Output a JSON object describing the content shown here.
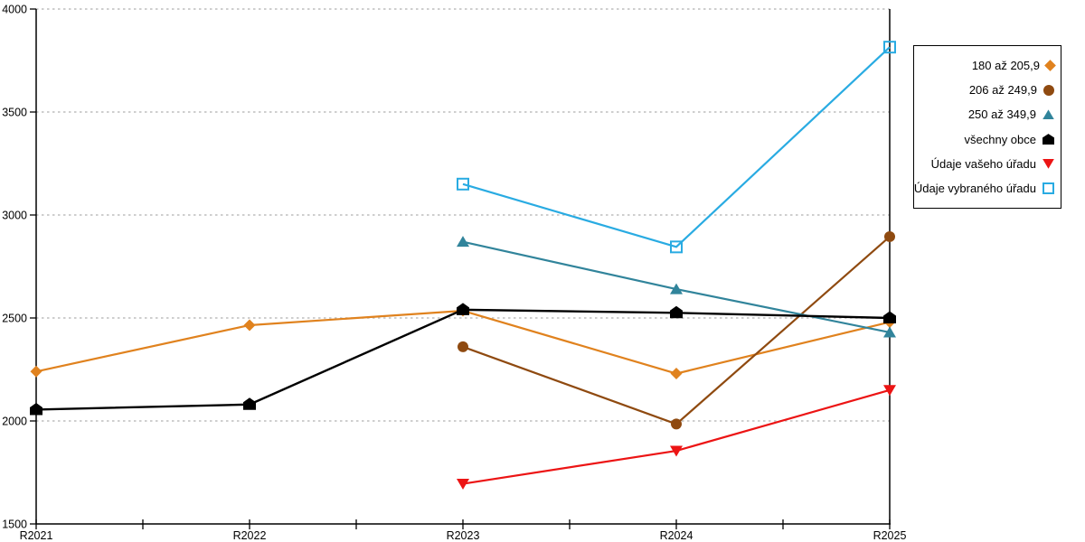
{
  "chart_data": {
    "type": "line",
    "title": "",
    "xlabel": "",
    "ylabel": "",
    "categories": [
      "R2021",
      "R2022",
      "R2023",
      "R2024",
      "R2025"
    ],
    "series": [
      {
        "name": "180 až 205,9",
        "marker": "diamond",
        "color": "#E0821E",
        "values": [
          2240,
          2465,
          2535,
          2230,
          2480
        ]
      },
      {
        "name": "206 až 249,9",
        "marker": "circle",
        "color": "#8F4A10",
        "values": [
          null,
          null,
          2360,
          1985,
          2895
        ]
      },
      {
        "name": "250 až 349,9",
        "marker": "triangle-up",
        "color": "#31849B",
        "values": [
          null,
          null,
          2870,
          2640,
          2430
        ]
      },
      {
        "name": "všechny obce",
        "marker": "pentagon",
        "color": "#000000",
        "values": [
          2055,
          2080,
          2540,
          2525,
          2500
        ]
      },
      {
        "name": "Údaje vašeho úřadu",
        "marker": "triangle-down",
        "color": "#EC1414",
        "values": [
          null,
          null,
          1695,
          1855,
          2150
        ]
      },
      {
        "name": "Údaje vybraného úřadu",
        "marker": "square-open",
        "color": "#29ABE2",
        "values": [
          null,
          null,
          3150,
          2845,
          3815
        ]
      }
    ],
    "ylim": [
      1500,
      4000
    ],
    "yticks": [
      1500,
      2000,
      2500,
      3000,
      3500,
      4000
    ],
    "grid": "horizontal-dotted",
    "legend_position": "right"
  },
  "colors": {
    "background": "#FFFFFF",
    "axis": "#000000",
    "gridline": "#BDBDBD",
    "tick_label": "#000000"
  }
}
